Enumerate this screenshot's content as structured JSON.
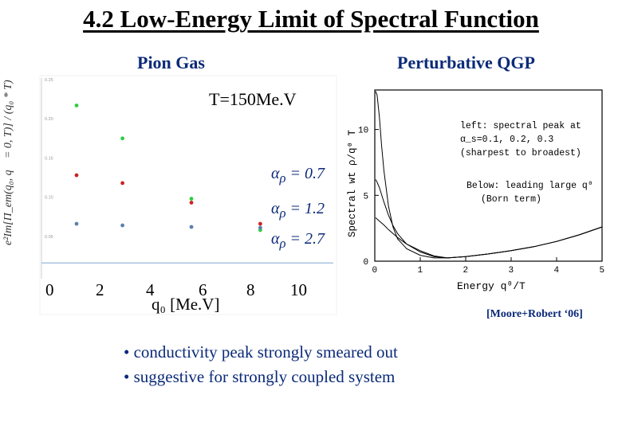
{
  "title": "4.2  Low-Energy Limit of Spectral Function",
  "left_panel": {
    "heading": "Pion Gas",
    "temperature": "T=150Me.V",
    "ylabel": "e²Im[Π_em(q₀, q⃗ = 0, T)] / (q₀ * T)",
    "x_axis_title": "q₀ [Me.V]",
    "x_tick_labels": [
      "0",
      "2",
      "4",
      "6",
      "8",
      "10"
    ],
    "y_tick_labels": [
      "0.25",
      "0.20",
      "0.15",
      "0.10",
      "0.05"
    ],
    "series_labels": [
      "α",
      "ρ",
      " = 0.7",
      " = 1.2",
      " = 2.7"
    ]
  },
  "right_panel": {
    "heading": "Perturbative QGP",
    "ylabel": "Spectral wt ρ/q⁰ T",
    "xlabel": "Energy q⁰/T",
    "x_tick_labels": [
      "0",
      "1",
      "2",
      "3",
      "4",
      "5"
    ],
    "y_tick_labels": [
      "0",
      "5",
      "10"
    ],
    "annotation_lines": [
      "left: spectral peak at",
      "α_s=0.1, 0.2, 0.3",
      "(sharpest to broadest)",
      "Below: leading large q⁰",
      "(Born term)"
    ],
    "citation": "[Moore+Robert ‘06]"
  },
  "bullets": [
    "• conductivity peak strongly smeared out",
    "• suggestive for strongly coupled system"
  ],
  "colors": {
    "accent": "#0b2a78",
    "green": "#2ecc40",
    "red": "#cc2222",
    "blue": "#5a7fae",
    "baseline": "#a9c4de"
  },
  "chart_data": [
    {
      "type": "scatter",
      "x_axis_title": "q₀ [Me.V]",
      "xlim": [
        0,
        11
      ],
      "ylim": [
        0,
        0.25
      ],
      "series": [
        {
          "color": "#2ecc40",
          "x": [
            1,
            2.8,
            5.5,
            8.2
          ],
          "y": [
            0.217,
            0.175,
            0.098,
            0.058
          ]
        },
        {
          "color": "#cc2222",
          "x": [
            1,
            2.8,
            5.5,
            8.2
          ],
          "y": [
            0.128,
            0.118,
            0.093,
            0.066
          ]
        },
        {
          "color": "#5a7fae",
          "x": [
            1,
            2.8,
            5.5,
            8.2
          ],
          "y": [
            0.066,
            0.064,
            0.062,
            0.061
          ]
        }
      ],
      "baseline": 0.016
    },
    {
      "type": "line",
      "xlabel": "Energy q⁰/T",
      "ylabel": "Spectral wt ρ/q⁰ T",
      "xlim": [
        0,
        5
      ],
      "ylim": [
        0,
        13
      ],
      "series": [
        {
          "x": [
            0.02,
            0.05,
            0.1,
            0.15,
            0.2,
            0.3,
            0.4,
            0.5,
            0.7,
            1.0,
            1.3,
            1.6,
            2.0,
            2.5,
            3.0,
            3.5,
            4.0,
            4.5,
            5.0
          ],
          "y": [
            12.9,
            12.6,
            11.0,
            8.8,
            6.9,
            4.2,
            2.6,
            1.7,
            0.95,
            0.45,
            0.25,
            0.25,
            0.35,
            0.55,
            0.8,
            1.1,
            1.5,
            2.0,
            2.6
          ]
        },
        {
          "x": [
            0.02,
            0.05,
            0.1,
            0.2,
            0.3,
            0.4,
            0.5,
            0.7,
            1.0,
            1.3,
            1.6,
            2.0,
            2.5,
            3.0,
            3.5,
            4.0,
            4.5,
            5.0
          ],
          "y": [
            6.2,
            6.0,
            5.6,
            4.5,
            3.5,
            2.7,
            2.1,
            1.3,
            0.7,
            0.35,
            0.25,
            0.35,
            0.55,
            0.8,
            1.1,
            1.5,
            2.0,
            2.6
          ]
        },
        {
          "x": [
            0.02,
            0.05,
            0.1,
            0.2,
            0.3,
            0.4,
            0.5,
            0.7,
            1.0,
            1.3,
            1.6,
            2.0,
            2.5,
            3.0,
            3.5,
            4.0,
            4.5,
            5.0
          ],
          "y": [
            3.3,
            3.2,
            3.05,
            2.75,
            2.4,
            2.1,
            1.8,
            1.3,
            0.8,
            0.4,
            0.25,
            0.35,
            0.55,
            0.8,
            1.1,
            1.5,
            2.0,
            2.6
          ]
        }
      ]
    }
  ]
}
